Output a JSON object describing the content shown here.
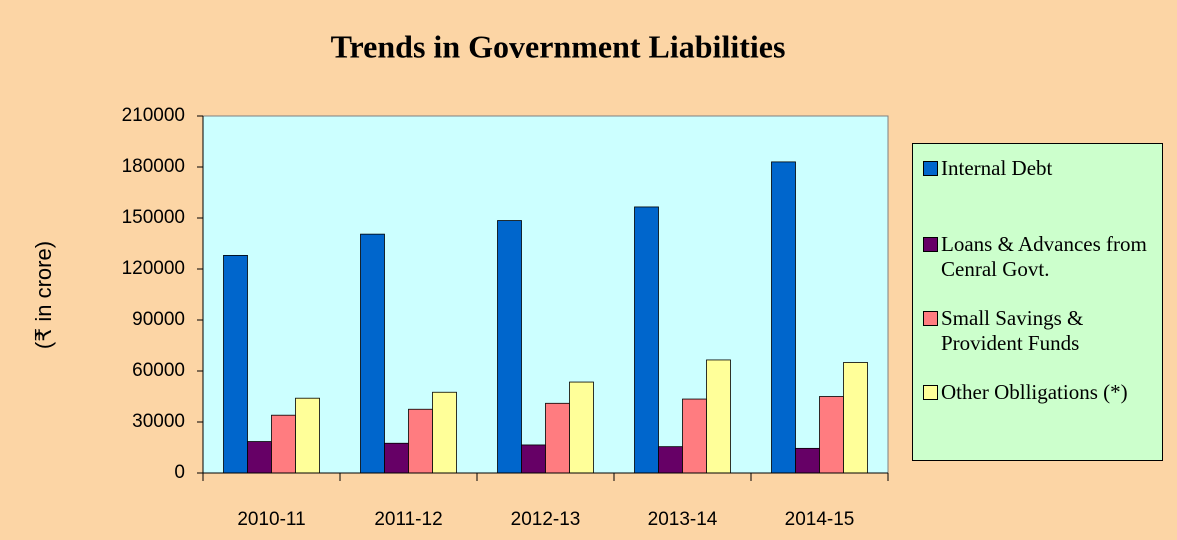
{
  "chart_data": {
    "type": "bar",
    "title": "Trends in Government Liabilities",
    "y_label": "(₹ in crore)",
    "categories": [
      "2010-11",
      "2011-12",
      "2012-13",
      "2013-14",
      "2014-15"
    ],
    "series": [
      {
        "name": "Internal Debt",
        "color": "#0066cc",
        "values": [
          128000,
          140500,
          148500,
          156500,
          183000
        ]
      },
      {
        "name": "Loans & Advances from Cenral Govt.",
        "color": "#660066",
        "values": [
          18500,
          17500,
          16500,
          15500,
          14500
        ]
      },
      {
        "name": "Small Savings & Provident Funds",
        "color": "#ff7c80",
        "values": [
          34000,
          37500,
          41000,
          43500,
          45000
        ]
      },
      {
        "name": "Other Oblligations (*)",
        "color": "#ffff99",
        "values": [
          44000,
          47500,
          53500,
          66500,
          65000
        ]
      }
    ],
    "ylim": [
      0,
      210000
    ],
    "yticks": [
      0,
      30000,
      60000,
      90000,
      120000,
      150000,
      180000,
      210000
    ]
  }
}
